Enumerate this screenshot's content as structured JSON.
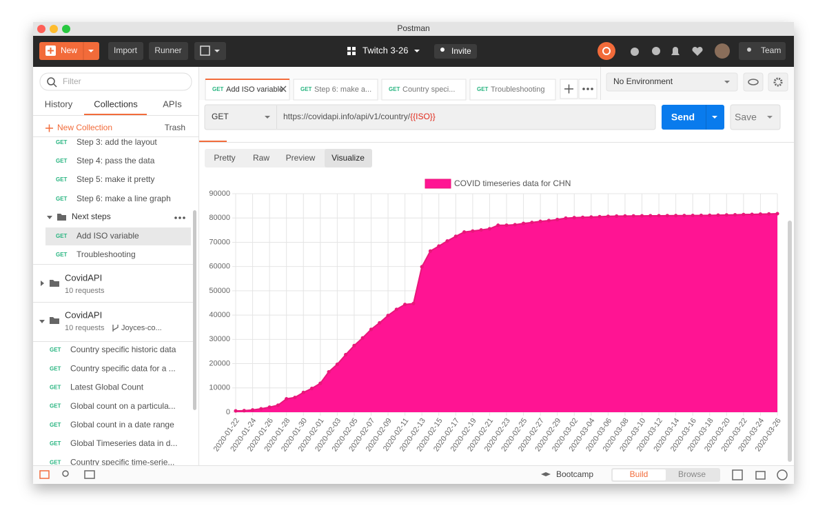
{
  "window_title": "Postman",
  "toolbar": {
    "new": "New",
    "import": "Import",
    "runner": "Runner",
    "workspace": "Twitch 3-26",
    "invite": "Invite",
    "team": "Team"
  },
  "sidebar": {
    "filter_placeholder": "Filter",
    "tabs": [
      "History",
      "Collections",
      "APIs"
    ],
    "new_collection": "New Collection",
    "trash": "Trash",
    "folder_items": [
      {
        "method": "GET",
        "name": "Step 3: add the layout"
      },
      {
        "method": "GET",
        "name": "Step 4: pass the data"
      },
      {
        "method": "GET",
        "name": "Step 5: make it pretty"
      },
      {
        "method": "GET",
        "name": "Step 6: make a line graph"
      }
    ],
    "folder": {
      "name": "Next steps",
      "items": [
        {
          "method": "GET",
          "name": "Add ISO variable"
        },
        {
          "method": "GET",
          "name": "Troubleshooting"
        }
      ]
    },
    "collections": [
      {
        "name": "CovidAPI",
        "meta": "10 requests"
      },
      {
        "name": "CovidAPI",
        "meta": "10 requests",
        "fork": "Joyces-co..."
      }
    ],
    "requests": [
      {
        "method": "GET",
        "name": "Country specific historic data"
      },
      {
        "method": "GET",
        "name": "Country specific data for a ..."
      },
      {
        "method": "GET",
        "name": "Latest Global Count"
      },
      {
        "method": "GET",
        "name": "Global count on a particula..."
      },
      {
        "method": "GET",
        "name": "Global count in a date range"
      },
      {
        "method": "GET",
        "name": "Global Timeseries data in d..."
      },
      {
        "method": "GET",
        "name": "Country specific time-serie..."
      }
    ]
  },
  "request_tabs": [
    {
      "method": "GET",
      "name": "Add ISO variable"
    },
    {
      "method": "GET",
      "name": "Step 6: make a..."
    },
    {
      "method": "GET",
      "name": "Country speci..."
    },
    {
      "method": "GET",
      "name": "Troubleshooting"
    }
  ],
  "environment": "No Environment",
  "request": {
    "method": "GET",
    "url": "https://covidapi.info/api/v1/country/",
    "url_variable": "{{ISO}}",
    "send": "Send",
    "save": "Save"
  },
  "response_tabs": [
    "Pretty",
    "Raw",
    "Preview",
    "Visualize"
  ],
  "footer": {
    "bootcamp": "Bootcamp",
    "build": "Build",
    "browse": "Browse"
  },
  "chart_data": {
    "type": "line",
    "fill": true,
    "categories": [
      "2020-01-22",
      null,
      "2020-01-24",
      null,
      "2020-01-26",
      null,
      "2020-01-28",
      null,
      "2020-01-30",
      null,
      "2020-02-01",
      null,
      "2020-02-03",
      null,
      "2020-02-05",
      null,
      "2020-02-07",
      null,
      "2020-02-09",
      null,
      "2020-02-11",
      null,
      "2020-02-13",
      null,
      "2020-02-15",
      null,
      "2020-02-17",
      null,
      "2020-02-19",
      null,
      "2020-02-21",
      null,
      "2020-02-23",
      null,
      "2020-02-25",
      null,
      "2020-02-27",
      null,
      "2020-02-29",
      null,
      "2020-03-02",
      null,
      "2020-03-04",
      null,
      "2020-03-06",
      null,
      "2020-03-08",
      null,
      "2020-03-10",
      null,
      "2020-03-12",
      null,
      "2020-03-14",
      null,
      "2020-03-16",
      null,
      "2020-03-18",
      null,
      "2020-03-20",
      null,
      "2020-03-22",
      null,
      "2020-03-24",
      null,
      "2020-03-26"
    ],
    "series": [
      {
        "name": "COVID timeseries data for CHN",
        "color": "#ff1493",
        "values": [
          548,
          643,
          920,
          1406,
          2075,
          2877,
          5509,
          6087,
          8141,
          9802,
          11891,
          16630,
          19716,
          23707,
          27440,
          30587,
          34110,
          36814,
          39829,
          42354,
          44386,
          44759,
          59895,
          66358,
          68413,
          70513,
          72434,
          74211,
          74619,
          75077,
          75550,
          77001,
          77022,
          77241,
          77754,
          78166,
          78600,
          78928,
          79356,
          79932,
          80136,
          80261,
          80386,
          80537,
          80690,
          80770,
          80823,
          80860,
          80887,
          80921,
          80932,
          80945,
          80977,
          81003,
          81033,
          81058,
          81102,
          81156,
          81250,
          81305,
          81435,
          81498,
          81591,
          81661,
          81782
        ]
      }
    ],
    "ylim": [
      0,
      90000
    ],
    "yticks": [
      0,
      10000,
      20000,
      30000,
      40000,
      50000,
      60000,
      70000,
      80000,
      90000
    ],
    "grid": true,
    "legend": "top"
  }
}
